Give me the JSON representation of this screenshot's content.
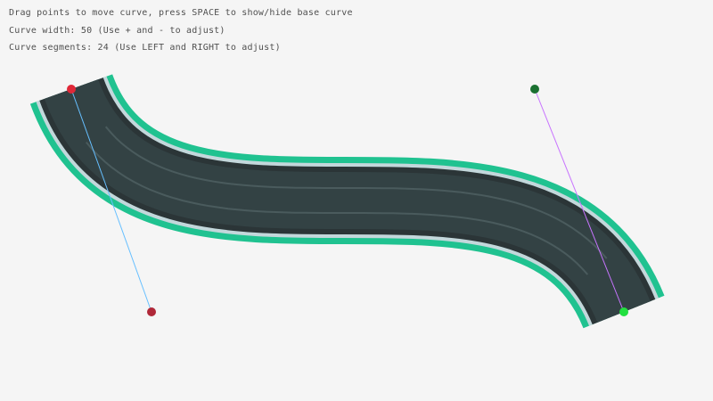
{
  "instructions": [
    "Drag points to move curve, press SPACE to show/hide base curve",
    "Curve width: 50 (Use + and - to adjust)",
    "Curve segments: 24 (Use LEFT and RIGHT to adjust)"
  ],
  "curve": {
    "width": 50,
    "segments": 24,
    "start": [
      80,
      100
    ],
    "start_tangent": [
      170,
      350
    ],
    "end_tangent": [
      600,
      100
    ],
    "end": [
      700,
      350
    ]
  },
  "colors": {
    "border": "#20c290",
    "edge": "#c3d7db",
    "road_edge": "#2b3537",
    "road": "#334244",
    "lane": "#4a5b5d",
    "start_point": "#e02838",
    "start_tangent_point": "#b02838",
    "end_point": "#22e040",
    "end_tangent_point": "#1a7030",
    "start_line": "#66bfff",
    "end_line": "#c874ff"
  }
}
